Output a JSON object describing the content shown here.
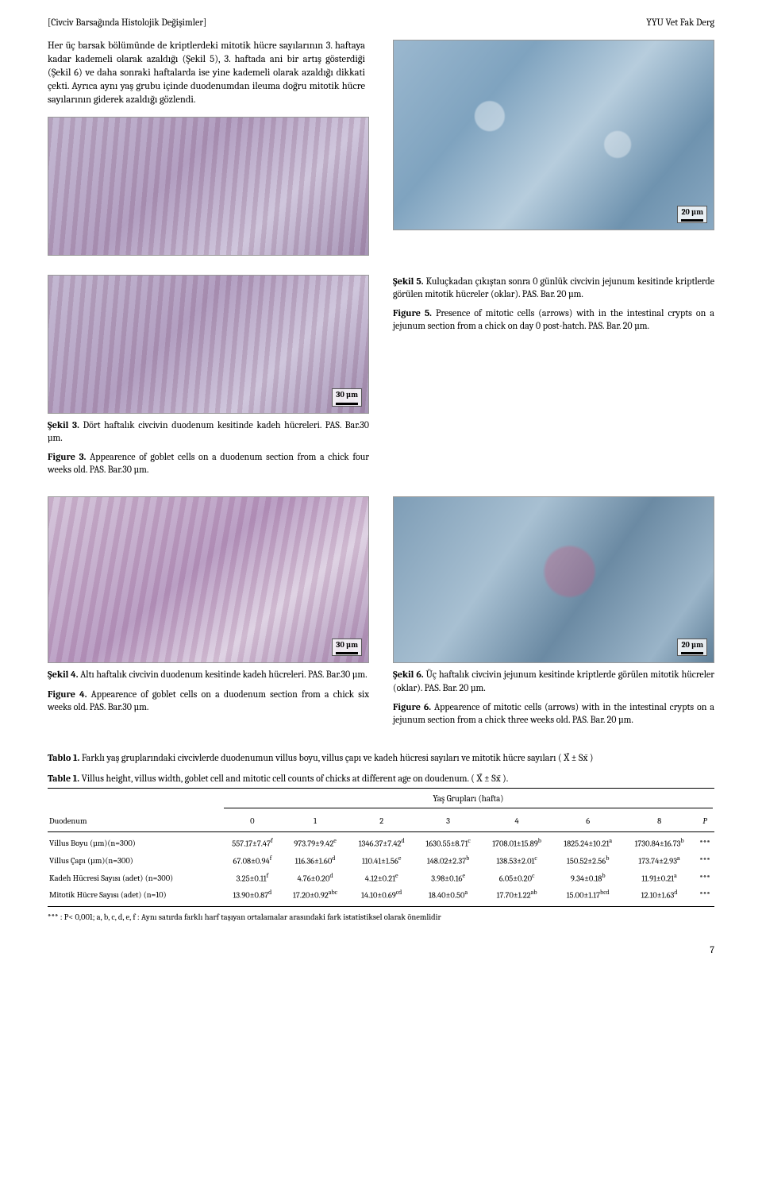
{
  "header": {
    "left": "[Civciv Barsağında Histolojik Değişimler]",
    "right": "YYU Vet Fak Derg"
  },
  "intro": "Her üç barsak bölümünde de kriptlerdeki mitotik hücre sayılarının 3. haftaya kadar kademeli olarak azaldığı (Şekil 5), 3. haftada ani bir artış gösterdiği (Şekil 6) ve daha sonraki haftalarda ise yine kademeli olarak azaldığı dikkati çekti. Ayrıca aynı yaş grubu içinde duodenumdan ileuma doğru mitotik hücre sayılarının giderek azaldığı gözlendi.",
  "figures": {
    "f3": {
      "scalebar": "30 µm",
      "tr_label": "Şekil 3.",
      "tr_text": "Dört haftalık civcivin duodenum kesitinde kadeh hücreleri. PAS. Bar.30 µm.",
      "en_label": "Figure 3.",
      "en_text": "Appearence of goblet cells on a duodenum section from a chick four weeks old. PAS. Bar.30 µm."
    },
    "f4": {
      "scalebar": "30 µm",
      "tr_label": "Şekil 4.",
      "tr_text": "Altı haftalık civcivin duodenum kesitinde kadeh hücreleri. PAS. Bar.30 µm.",
      "en_label": "Figure 4.",
      "en_text": "Appearence of goblet cells on a duodenum section from a chick six weeks old. PAS. Bar.30 µm."
    },
    "f5": {
      "scalebar": "20 µm",
      "tr_label": "Şekil 5.",
      "tr_text": "Kuluçkadan çıkıştan sonra 0 günlük civcivin jejunum kesitinde kriptlerde görülen mitotik hücreler (oklar). PAS. Bar. 20 µm.",
      "en_label": "Figure 5.",
      "en_text": "Presence of mitotic cells (arrows) with in the intestinal crypts on a jejunum section from a chick on day 0 post-hatch. PAS. Bar. 20 µm."
    },
    "f6": {
      "scalebar": "20 µm",
      "tr_label": "Şekil 6.",
      "tr_text": "Üç haftalık civcivin jejunum kesitinde kriptlerde görülen mitotik hücreler (oklar). PAS. Bar. 20 µm.",
      "en_label": "Figure 6.",
      "en_text": "Appearence of mitotic cells (arrows) with in the intestinal crypts on a jejunum section from a chick three weeks old. PAS. Bar. 20 µm."
    }
  },
  "table": {
    "title_tr_label": "Tablo 1.",
    "title_tr": "Farklı yaş gruplarındaki civcivlerde duodenumun villus boyu, villus çapı ve kadeh hücresi sayıları ve mitotik hücre sayıları ( X̄ ± Sx̄ )",
    "title_en_label": "Table 1.",
    "title_en": "Villus height, villus width, goblet cell and mitotic cell counts of chicks at different age on doudenum. ( X̄ ± Sx̄ ).",
    "corner": "Duodenum",
    "group_header": "Yaş Grupları (hafta)",
    "cols": [
      "0",
      "1",
      "2",
      "3",
      "4",
      "6",
      "8",
      "P"
    ],
    "rows": [
      {
        "label": "Villus Boyu (µm)(n=300)",
        "cells": [
          {
            "v": "557.17±7.47",
            "s": "f"
          },
          {
            "v": "973.79±9.42",
            "s": "e"
          },
          {
            "v": "1346.37±7.42",
            "s": "d"
          },
          {
            "v": "1630.55±8.71",
            "s": "c"
          },
          {
            "v": "1708.01±15.89",
            "s": "b"
          },
          {
            "v": "1825.24±10.21",
            "s": "a"
          },
          {
            "v": "1730.84±16.73",
            "s": "b"
          }
        ],
        "p": "***"
      },
      {
        "label": "Villus Çapı (µm)(n=300)",
        "cells": [
          {
            "v": "67.08±0.94",
            "s": "f"
          },
          {
            "v": "116.36±1.60",
            "s": "d"
          },
          {
            "v": "110.41±1.56",
            "s": "e"
          },
          {
            "v": "148.02±2.37",
            "s": "b"
          },
          {
            "v": "138.53±2.01",
            "s": "c"
          },
          {
            "v": "150.52±2.56",
            "s": "b"
          },
          {
            "v": "173.74±2.93",
            "s": "a"
          }
        ],
        "p": "***"
      },
      {
        "label": "Kadeh Hücresi Sayısı (adet) (n=300)",
        "cells": [
          {
            "v": "3.25±0.11",
            "s": "f"
          },
          {
            "v": "4.76±0.20",
            "s": "d"
          },
          {
            "v": "4.12±0.21",
            "s": "e"
          },
          {
            "v": "3.98±0.16",
            "s": "e"
          },
          {
            "v": "6.05±0.20",
            "s": "c"
          },
          {
            "v": "9.34±0.18",
            "s": "b"
          },
          {
            "v": "11.91±0.21",
            "s": "a"
          }
        ],
        "p": "***"
      },
      {
        "label": "Mitotik Hücre Sayısı (adet) (n=10)",
        "cells": [
          {
            "v": "13.90±0.87",
            "s": "d"
          },
          {
            "v": "17.20±0.92",
            "s": "abc"
          },
          {
            "v": "14.10±0.69",
            "s": "cd"
          },
          {
            "v": "18.40±0.50",
            "s": "a"
          },
          {
            "v": "17.70±1.22",
            "s": "ab"
          },
          {
            "v": "15.00±1.17",
            "s": "bcd"
          },
          {
            "v": "12.10±1.63",
            "s": "d"
          }
        ],
        "p": "***"
      }
    ],
    "footnote": "*** : P< 0,001; a, b, c, d, e, f : Aynı satırda farklı harf taşıyan ortalamalar arasındaki fark istatistiksel olarak önemlidir"
  },
  "pagenum": "7"
}
